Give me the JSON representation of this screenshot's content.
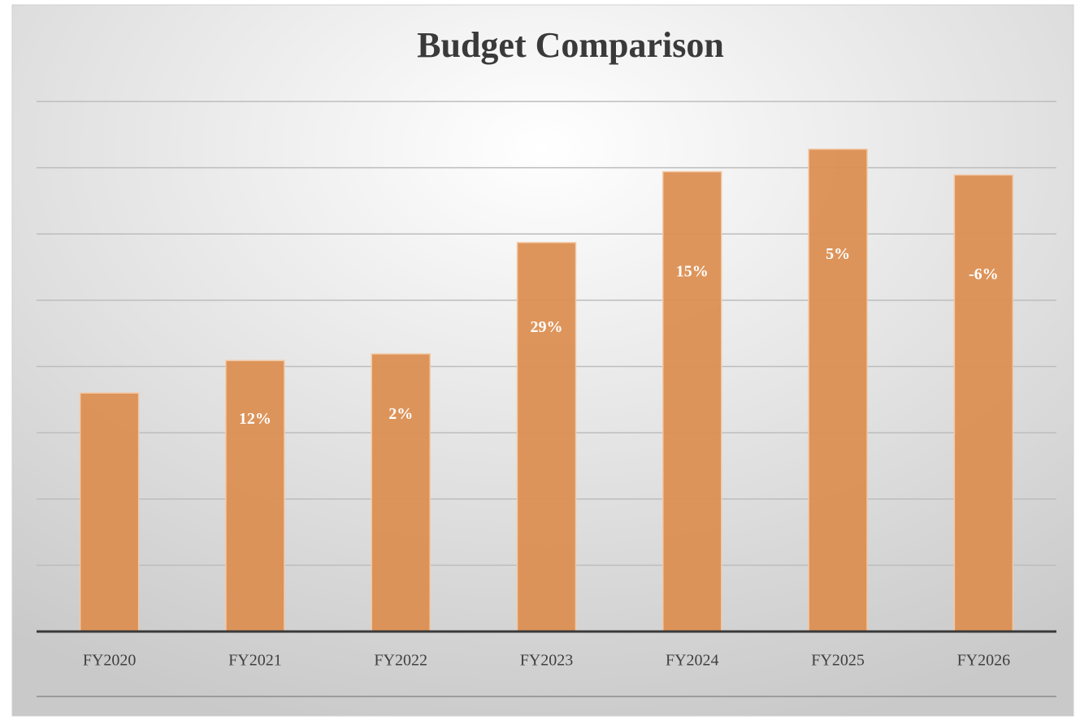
{
  "chart_data": {
    "type": "bar",
    "title": "Budget Comparison",
    "categories": [
      "FY2020",
      "FY2021",
      "FY2022",
      "FY2023",
      "FY2024",
      "FY2025",
      "FY2026"
    ],
    "values": [
      3.6,
      4.09,
      4.19,
      5.87,
      6.94,
      7.28,
      6.89
    ],
    "change_labels": [
      null,
      "12%",
      "2%",
      "29%",
      "15%",
      "5%",
      "-6%"
    ],
    "color": "#dc8f52",
    "ylim": [
      0,
      8
    ],
    "yticks": [
      0,
      1,
      2,
      3,
      4,
      5,
      6,
      7,
      8
    ],
    "grid": true
  }
}
